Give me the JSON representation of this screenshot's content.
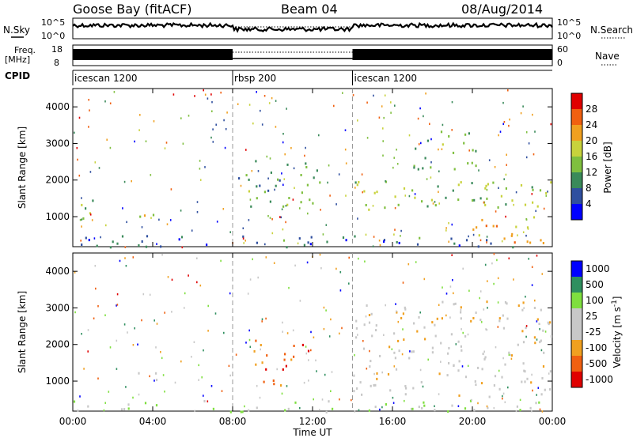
{
  "header": {
    "station": "Goose Bay (fitACF)",
    "beam": "Beam 04",
    "date": "08/Aug/2014"
  },
  "top_panels": {
    "nsky_label": "N.Sky",
    "nsky_top_tick": "10^5",
    "nsky_bottom_tick": "10^0",
    "nsearch_label": "N.Search",
    "nsearch_top_tick": "10^5",
    "nsearch_bottom_tick": "10^0",
    "freq_label_line1": "Freq.",
    "freq_label_line2": "[MHz]",
    "freq_top_tick": "18",
    "freq_bottom_tick": "8",
    "nave_label": "Nave",
    "nave_top_tick": "60",
    "nave_bottom_tick": "0",
    "cpid_label": "CPID",
    "cpid_segments": [
      {
        "name": "icescan 1200",
        "start_hour": 0
      },
      {
        "name": "rbsp 200",
        "start_hour": 8
      },
      {
        "name": "icescan 1200",
        "start_hour": 14
      }
    ]
  },
  "colors": {
    "power": [
      "#0000ff",
      "#2f4f9f",
      "#3a8a5a",
      "#7fbf3f",
      "#c8d23c",
      "#f0a020",
      "#f06010",
      "#e00000"
    ],
    "velocity": [
      "#e00000",
      "#f06010",
      "#f0a020",
      "#c8c8c8",
      "#c8c8c8",
      "#7fdf3f",
      "#2f8f5f",
      "#0000ff"
    ]
  },
  "chart_data": [
    {
      "type": "heatmap",
      "title": "Power",
      "ylabel": "Slant Range [km]",
      "xlabel": "",
      "xlim_hours": [
        0,
        24
      ],
      "ylim": [
        180,
        4500
      ],
      "yticks": [
        "1000",
        "2000",
        "3000",
        "4000"
      ],
      "colorbar_label": "Power [dB]",
      "colorbar_ticks": [
        "4",
        "8",
        "12",
        "16",
        "20",
        "24",
        "28"
      ],
      "features": [
        {
          "t0": 0,
          "t1": 24,
          "r0": 180,
          "r1": 500,
          "level": 0.2
        },
        {
          "t0": 0,
          "t1": 1.0,
          "r0": 650,
          "r1": 1500,
          "level": 0.4
        },
        {
          "t0": 3.0,
          "t1": 4.2,
          "r0": 1000,
          "r1": 1450,
          "level": 0.55
        },
        {
          "t0": 8.2,
          "t1": 12.5,
          "r0": 1300,
          "r1": 2600,
          "level": 0.35
        },
        {
          "t0": 14.0,
          "t1": 24,
          "r0": 1100,
          "r1": 2000,
          "level": 0.45
        },
        {
          "t0": 20.0,
          "t1": 24,
          "r0": 300,
          "r1": 1100,
          "level": 0.75
        },
        {
          "t0": 17.0,
          "t1": 20.5,
          "r0": 2300,
          "r1": 3400,
          "level": 0.4
        }
      ]
    },
    {
      "type": "heatmap",
      "title": "Velocity",
      "ylabel": "Slant Range [km]",
      "xlabel": "Time UT",
      "xlim_hours": [
        0,
        24
      ],
      "ylim": [
        180,
        4500
      ],
      "yticks": [
        "1000",
        "2000",
        "3000",
        "4000"
      ],
      "xticks": [
        "00:00",
        "04:00",
        "08:00",
        "12:00",
        "16:00",
        "20:00",
        "00:00"
      ],
      "colorbar_label": "Velocity [m s^-1]",
      "colorbar_ticks": [
        "1000",
        "500",
        "100",
        "25",
        "-25",
        "-100",
        "-500",
        "-1000"
      ],
      "features": [
        {
          "t0": 0,
          "t1": 24,
          "r0": 180,
          "r1": 500,
          "level": 0.6
        },
        {
          "t0": 9.0,
          "t1": 11.8,
          "r0": 900,
          "r1": 2200,
          "level": 0.2
        },
        {
          "t0": 14.0,
          "t1": 24,
          "r0": 600,
          "r1": 3200,
          "level": 0.45
        },
        {
          "t0": 3.0,
          "t1": 4.2,
          "r0": 1000,
          "r1": 1450,
          "level": 0.55
        }
      ]
    }
  ]
}
